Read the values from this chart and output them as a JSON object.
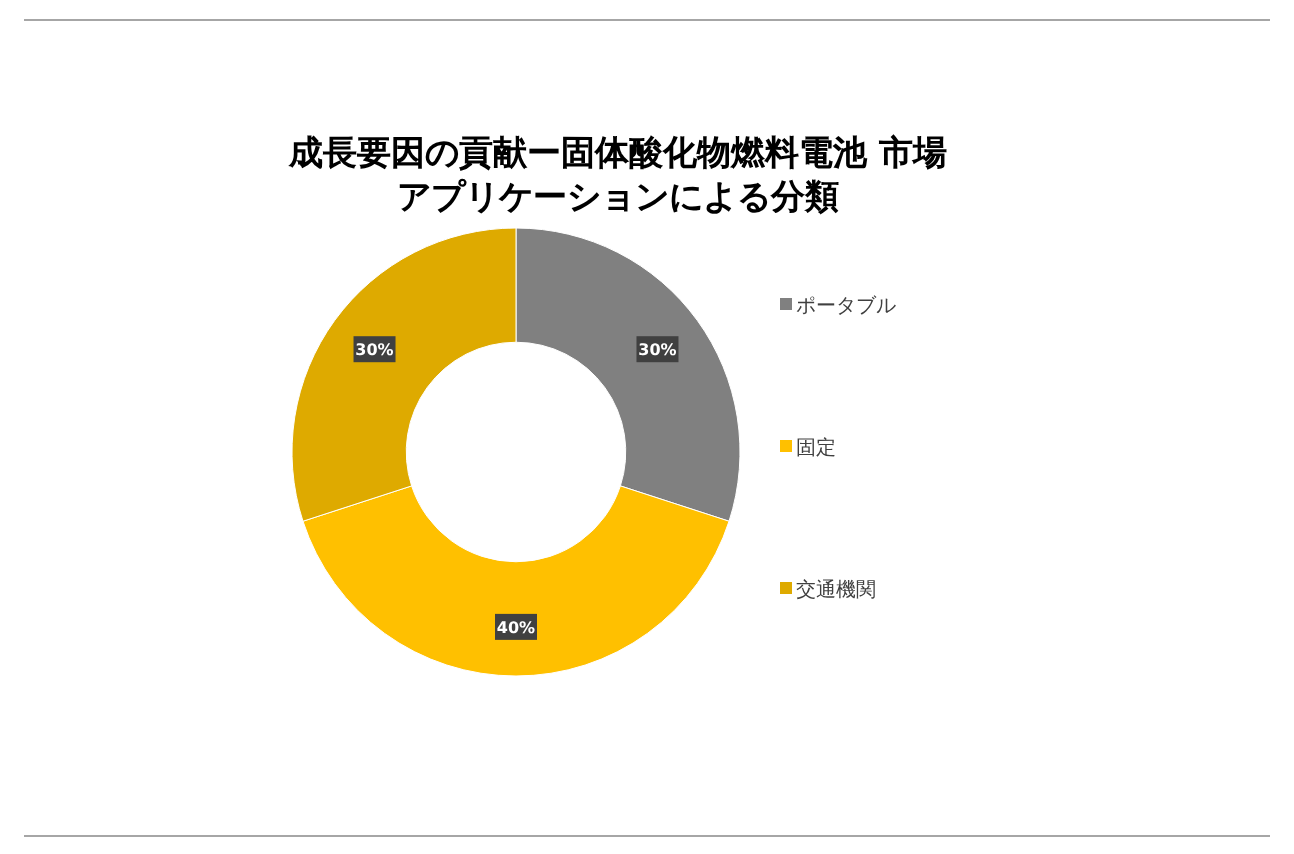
{
  "chart_data": {
    "type": "donut",
    "title": "成長要因の貢献ー固体酸化物燃料電池 市場",
    "subtitle": "アプリケーションによる分類",
    "categories": [
      "ポータブル",
      "固定",
      "交通機関"
    ],
    "values": [
      30,
      40,
      30
    ],
    "colors": [
      "#808080",
      "#ffc000",
      "#deaa00"
    ],
    "value_labels": [
      "30%",
      "40%",
      "30%"
    ],
    "legend": "right"
  }
}
